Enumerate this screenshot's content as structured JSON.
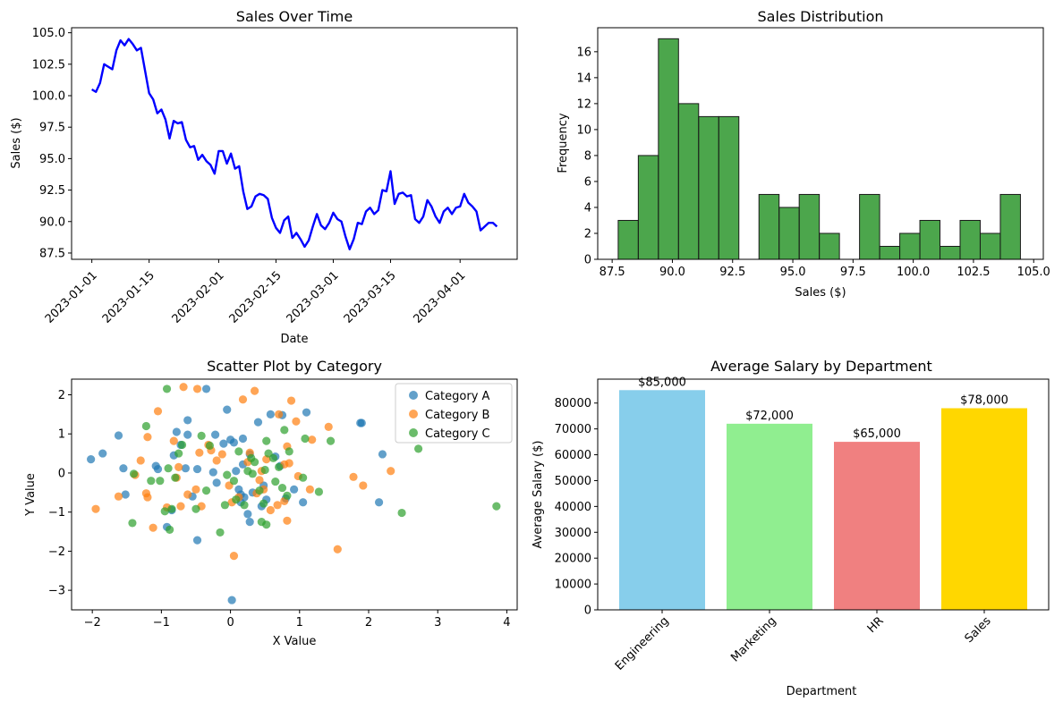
{
  "chart_data": [
    {
      "type": "line",
      "title": "Sales Over Time",
      "xlabel": "Date",
      "ylabel": "Sales ($)",
      "color": "#0000ff",
      "x_start": "2023-01-01",
      "x_end": "2023-04-10",
      "xticks": [
        "2023-01-01",
        "2023-01-15",
        "2023-02-01",
        "2023-02-15",
        "2023-03-01",
        "2023-03-15",
        "2023-04-01"
      ],
      "yticks": [
        "87.5",
        "90.0",
        "92.5",
        "95.0",
        "97.5",
        "100.0",
        "102.5",
        "105.0"
      ],
      "ylim": [
        87.0,
        105.4
      ],
      "values": [
        100.5,
        100.3,
        101.0,
        102.5,
        102.3,
        102.1,
        103.6,
        104.4,
        104.0,
        104.5,
        104.1,
        103.6,
        103.8,
        102.0,
        100.2,
        99.7,
        98.6,
        98.9,
        98.1,
        96.6,
        98.0,
        97.8,
        97.9,
        96.5,
        95.9,
        96.0,
        94.9,
        95.3,
        94.8,
        94.5,
        93.8,
        95.6,
        95.6,
        94.6,
        95.4,
        94.2,
        94.4,
        92.4,
        91.0,
        91.2,
        92.0,
        92.2,
        92.1,
        91.8,
        90.3,
        89.5,
        89.1,
        90.1,
        90.4,
        88.7,
        89.1,
        88.6,
        88.0,
        88.5,
        89.6,
        90.6,
        89.7,
        89.4,
        89.9,
        90.7,
        90.2,
        90.0,
        88.8,
        87.8,
        88.6,
        89.9,
        89.8,
        90.8,
        91.1,
        90.6,
        90.9,
        92.5,
        92.4,
        94.0,
        91.4,
        92.2,
        92.3,
        92.0,
        92.1,
        90.2,
        89.9,
        90.4,
        91.7,
        91.2,
        90.4,
        89.9,
        90.8,
        91.1,
        90.6,
        91.1,
        91.2,
        92.2,
        91.5,
        91.2,
        90.8,
        89.3,
        89.6,
        89.9,
        89.9,
        89.6
      ]
    },
    {
      "type": "bar",
      "title": "Sales Distribution",
      "xlabel": "Sales ($)",
      "ylabel": "Frequency",
      "color": "#008000",
      "edgecolor": "#1a1a1a",
      "bin_start": 87.75,
      "bin_width": 0.835,
      "counts": [
        3,
        8,
        17,
        12,
        11,
        11,
        0,
        5,
        4,
        5,
        2,
        0,
        5,
        1,
        2,
        3,
        1,
        3,
        2,
        5
      ],
      "xticks": [
        "87.5",
        "90.0",
        "92.5",
        "95.0",
        "97.5",
        "100.0",
        "102.5",
        "105.0"
      ],
      "yticks": [
        "0",
        "2",
        "4",
        "6",
        "8",
        "10",
        "12",
        "14",
        "16"
      ],
      "xlim": [
        86.9,
        105.4
      ],
      "ylim": [
        0,
        17.85
      ]
    },
    {
      "type": "scatter",
      "title": "Scatter Plot by Category",
      "xlabel": "X Value",
      "ylabel": "Y Value",
      "xticks": [
        "−2",
        "−1",
        "0",
        "1",
        "2",
        "3",
        "4"
      ],
      "yticks": [
        "−3",
        "−2",
        "−1",
        "0",
        "1",
        "2"
      ],
      "xlim": [
        -2.3,
        4.15
      ],
      "ylim": [
        -3.5,
        2.4
      ],
      "legend_position": "top-right",
      "series": [
        {
          "name": "Category A",
          "color": "#1f77b4",
          "points": [
            [
              -2.02,
              0.35
            ],
            [
              -1.85,
              0.5
            ],
            [
              -1.62,
              0.96
            ],
            [
              -1.55,
              0.12
            ],
            [
              -1.52,
              -0.55
            ],
            [
              -1.08,
              0.18
            ],
            [
              -1.05,
              0.1
            ],
            [
              -0.92,
              -1.38
            ],
            [
              -0.85,
              -0.95
            ],
            [
              -0.82,
              0.45
            ],
            [
              -0.78,
              1.05
            ],
            [
              -0.72,
              0.72
            ],
            [
              -0.65,
              0.12
            ],
            [
              -0.62,
              1.35
            ],
            [
              -0.62,
              0.98
            ],
            [
              -0.55,
              -0.6
            ],
            [
              -0.48,
              0.1
            ],
            [
              -0.48,
              -1.72
            ],
            [
              -0.35,
              2.15
            ],
            [
              -0.25,
              0.02
            ],
            [
              -0.22,
              0.98
            ],
            [
              -0.2,
              -0.25
            ],
            [
              -0.1,
              0.75
            ],
            [
              -0.05,
              1.62
            ],
            [
              0.0,
              0.85
            ],
            [
              0.02,
              -3.25
            ],
            [
              0.05,
              0.78
            ],
            [
              0.08,
              0.05
            ],
            [
              0.12,
              -0.42
            ],
            [
              0.15,
              -0.55
            ],
            [
              0.15,
              -0.75
            ],
            [
              0.18,
              0.88
            ],
            [
              0.18,
              0.22
            ],
            [
              0.2,
              -0.62
            ],
            [
              0.25,
              -1.05
            ],
            [
              0.28,
              -1.25
            ],
            [
              0.28,
              0.48
            ],
            [
              0.32,
              -0.5
            ],
            [
              0.4,
              1.3
            ],
            [
              0.45,
              -0.85
            ],
            [
              0.48,
              -0.32
            ],
            [
              0.52,
              -0.68
            ],
            [
              0.58,
              1.5
            ],
            [
              0.65,
              0.42
            ],
            [
              0.72,
              0.18
            ],
            [
              0.75,
              1.48
            ],
            [
              0.8,
              -0.65
            ],
            [
              0.92,
              -0.42
            ],
            [
              1.05,
              -0.75
            ],
            [
              1.1,
              1.55
            ],
            [
              1.88,
              1.28
            ],
            [
              1.9,
              1.28
            ],
            [
              2.15,
              -0.75
            ],
            [
              2.2,
              0.48
            ]
          ]
        },
        {
          "name": "Category B",
          "color": "#ff7f0e",
          "points": [
            [
              -1.95,
              -0.92
            ],
            [
              -1.62,
              -0.6
            ],
            [
              -1.38,
              -0.05
            ],
            [
              -1.3,
              0.32
            ],
            [
              -1.22,
              -0.52
            ],
            [
              -1.2,
              -0.62
            ],
            [
              -1.2,
              0.92
            ],
            [
              -1.12,
              -1.4
            ],
            [
              -1.05,
              1.58
            ],
            [
              -0.92,
              -0.88
            ],
            [
              -0.82,
              0.82
            ],
            [
              -0.78,
              -0.12
            ],
            [
              -0.75,
              0.15
            ],
            [
              -0.72,
              -0.85
            ],
            [
              -0.68,
              2.2
            ],
            [
              -0.62,
              -0.55
            ],
            [
              -0.5,
              -0.42
            ],
            [
              -0.48,
              2.15
            ],
            [
              -0.45,
              0.52
            ],
            [
              -0.42,
              -0.85
            ],
            [
              -0.32,
              0.72
            ],
            [
              -0.28,
              0.58
            ],
            [
              -0.2,
              0.32
            ],
            [
              -0.12,
              0.48
            ],
            [
              -0.02,
              -0.32
            ],
            [
              0.02,
              -0.75
            ],
            [
              0.05,
              -2.12
            ],
            [
              0.12,
              -0.62
            ],
            [
              0.18,
              1.88
            ],
            [
              0.25,
              0.28
            ],
            [
              0.28,
              0.52
            ],
            [
              0.35,
              2.1
            ],
            [
              0.38,
              -0.52
            ],
            [
              0.42,
              -0.18
            ],
            [
              0.45,
              0.05
            ],
            [
              0.48,
              -0.42
            ],
            [
              0.52,
              0.35
            ],
            [
              0.58,
              -0.95
            ],
            [
              0.68,
              -0.82
            ],
            [
              0.7,
              1.5
            ],
            [
              0.78,
              -0.72
            ],
            [
              0.78,
              0.22
            ],
            [
              0.82,
              0.68
            ],
            [
              0.82,
              -1.22
            ],
            [
              0.85,
              0.25
            ],
            [
              0.88,
              1.85
            ],
            [
              0.95,
              1.32
            ],
            [
              0.98,
              -0.08
            ],
            [
              1.15,
              -0.42
            ],
            [
              1.18,
              0.85
            ],
            [
              1.42,
              1.18
            ],
            [
              1.55,
              -1.95
            ],
            [
              1.78,
              -0.1
            ],
            [
              1.92,
              -0.32
            ],
            [
              2.32,
              0.05
            ]
          ]
        },
        {
          "name": "Category C",
          "color": "#2ca02c",
          "points": [
            [
              -1.42,
              -1.28
            ],
            [
              -1.4,
              -0.02
            ],
            [
              -1.22,
              1.2
            ],
            [
              -1.15,
              -0.2
            ],
            [
              -1.02,
              -0.2
            ],
            [
              -0.95,
              -0.98
            ],
            [
              -0.92,
              2.15
            ],
            [
              -0.9,
              0.12
            ],
            [
              -0.88,
              -1.45
            ],
            [
              -0.85,
              -0.92
            ],
            [
              -0.8,
              -0.12
            ],
            [
              -0.75,
              0.5
            ],
            [
              -0.7,
              0.72
            ],
            [
              -0.5,
              -0.92
            ],
            [
              -0.42,
              0.95
            ],
            [
              -0.35,
              -0.45
            ],
            [
              -0.3,
              0.7
            ],
            [
              -0.15,
              -1.52
            ],
            [
              -0.08,
              -0.82
            ],
            [
              -0.05,
              -0.05
            ],
            [
              0.05,
              -0.2
            ],
            [
              0.08,
              -0.68
            ],
            [
              0.12,
              0.55
            ],
            [
              0.2,
              -0.82
            ],
            [
              0.25,
              0.05
            ],
            [
              0.3,
              0.38
            ],
            [
              0.32,
              -0.02
            ],
            [
              0.35,
              0.28
            ],
            [
              0.42,
              -0.45
            ],
            [
              0.45,
              -1.25
            ],
            [
              0.48,
              -0.78
            ],
            [
              0.5,
              0.08
            ],
            [
              0.52,
              -1.32
            ],
            [
              0.52,
              0.82
            ],
            [
              0.55,
              0.5
            ],
            [
              0.62,
              0.38
            ],
            [
              0.65,
              -0.22
            ],
            [
              0.7,
              0.15
            ],
            [
              0.75,
              -0.38
            ],
            [
              0.78,
              1.1
            ],
            [
              0.82,
              -0.58
            ],
            [
              0.85,
              0.55
            ],
            [
              1.05,
              -0.12
            ],
            [
              1.08,
              0.88
            ],
            [
              1.28,
              -0.48
            ],
            [
              1.45,
              0.82
            ],
            [
              2.48,
              -1.02
            ],
            [
              2.72,
              0.62
            ],
            [
              3.85,
              -0.85
            ]
          ]
        }
      ]
    },
    {
      "type": "bar",
      "title": "Average Salary by Department",
      "xlabel": "Department",
      "ylabel": "Average Salary ($)",
      "categories": [
        "Engineering",
        "Marketing",
        "HR",
        "Sales"
      ],
      "values": [
        85000,
        72000,
        65000,
        78000
      ],
      "data_labels": [
        "$85,000",
        "$72,000",
        "$65,000",
        "$78,000"
      ],
      "colors": [
        "#87ceeb",
        "#90ee90",
        "#f08080",
        "#ffd700"
      ],
      "yticks": [
        "0",
        "10000",
        "20000",
        "30000",
        "40000",
        "50000",
        "60000",
        "70000",
        "80000"
      ],
      "ylim": [
        0,
        89250
      ]
    }
  ]
}
